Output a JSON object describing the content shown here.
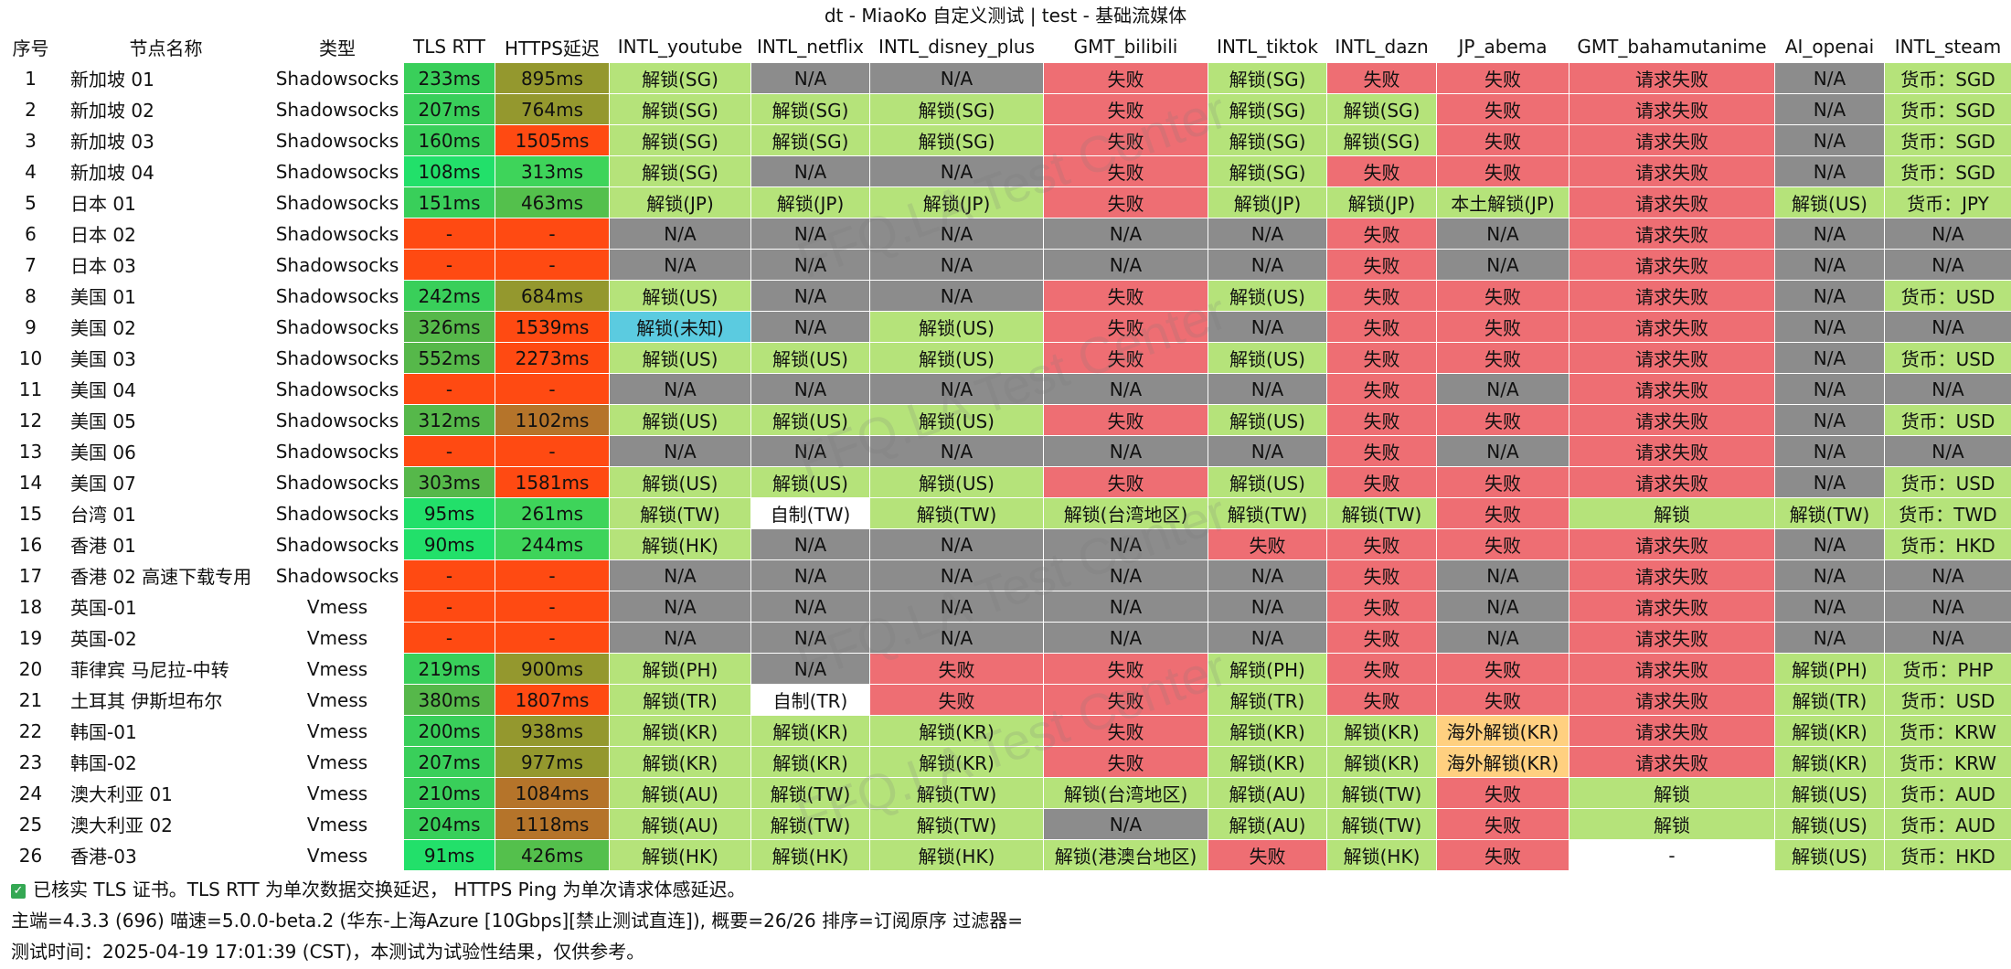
{
  "window_title": "dt - MiaoKo 自定义测试 | test - 基础流媒体",
  "watermark_text": "FFQ.LA Test Center",
  "columns": [
    "序号",
    "节点名称",
    "类型",
    "TLS RTT",
    "HTTPS延迟",
    "INTL_youtube",
    "INTL_netflix",
    "INTL_disney_plus",
    "GMT_bilibili",
    "INTL_tiktok",
    "INTL_dazn",
    "JP_abema",
    "GMT_bahamutanime",
    "AI_openai",
    "INTL_steam"
  ],
  "rows": [
    [
      "1",
      "新加坡 01",
      "Shadowsocks",
      "233ms",
      "895ms",
      "解锁(SG)",
      "N/A",
      "N/A",
      "失败",
      "解锁(SG)",
      "失败",
      "失败",
      "请求失败",
      "N/A",
      "货币：SGD"
    ],
    [
      "2",
      "新加坡 02",
      "Shadowsocks",
      "207ms",
      "764ms",
      "解锁(SG)",
      "解锁(SG)",
      "解锁(SG)",
      "失败",
      "解锁(SG)",
      "解锁(SG)",
      "失败",
      "请求失败",
      "N/A",
      "货币：SGD"
    ],
    [
      "3",
      "新加坡 03",
      "Shadowsocks",
      "160ms",
      "1505ms",
      "解锁(SG)",
      "解锁(SG)",
      "解锁(SG)",
      "失败",
      "解锁(SG)",
      "解锁(SG)",
      "失败",
      "请求失败",
      "N/A",
      "货币：SGD"
    ],
    [
      "4",
      "新加坡 04",
      "Shadowsocks",
      "108ms",
      "313ms",
      "解锁(SG)",
      "N/A",
      "N/A",
      "失败",
      "解锁(SG)",
      "失败",
      "失败",
      "请求失败",
      "N/A",
      "货币：SGD"
    ],
    [
      "5",
      "日本 01",
      "Shadowsocks",
      "151ms",
      "463ms",
      "解锁(JP)",
      "解锁(JP)",
      "解锁(JP)",
      "失败",
      "解锁(JP)",
      "解锁(JP)",
      "本土解锁(JP)",
      "请求失败",
      "解锁(US)",
      "货币：JPY"
    ],
    [
      "6",
      "日本 02",
      "Shadowsocks",
      "-",
      "-",
      "N/A",
      "N/A",
      "N/A",
      "N/A",
      "N/A",
      "失败",
      "N/A",
      "请求失败",
      "N/A",
      "N/A"
    ],
    [
      "7",
      "日本 03",
      "Shadowsocks",
      "-",
      "-",
      "N/A",
      "N/A",
      "N/A",
      "N/A",
      "N/A",
      "失败",
      "N/A",
      "请求失败",
      "N/A",
      "N/A"
    ],
    [
      "8",
      "美国 01",
      "Shadowsocks",
      "242ms",
      "684ms",
      "解锁(US)",
      "N/A",
      "N/A",
      "失败",
      "解锁(US)",
      "失败",
      "失败",
      "请求失败",
      "N/A",
      "货币：USD"
    ],
    [
      "9",
      "美国 02",
      "Shadowsocks",
      "326ms",
      "1539ms",
      "解锁(未知)",
      "N/A",
      "解锁(US)",
      "失败",
      "N/A",
      "失败",
      "失败",
      "请求失败",
      "N/A",
      "N/A"
    ],
    [
      "10",
      "美国 03",
      "Shadowsocks",
      "552ms",
      "2273ms",
      "解锁(US)",
      "解锁(US)",
      "解锁(US)",
      "失败",
      "解锁(US)",
      "失败",
      "失败",
      "请求失败",
      "N/A",
      "货币：USD"
    ],
    [
      "11",
      "美国 04",
      "Shadowsocks",
      "-",
      "-",
      "N/A",
      "N/A",
      "N/A",
      "N/A",
      "N/A",
      "失败",
      "N/A",
      "请求失败",
      "N/A",
      "N/A"
    ],
    [
      "12",
      "美国 05",
      "Shadowsocks",
      "312ms",
      "1102ms",
      "解锁(US)",
      "解锁(US)",
      "解锁(US)",
      "失败",
      "解锁(US)",
      "失败",
      "失败",
      "请求失败",
      "N/A",
      "货币：USD"
    ],
    [
      "13",
      "美国 06",
      "Shadowsocks",
      "-",
      "-",
      "N/A",
      "N/A",
      "N/A",
      "N/A",
      "N/A",
      "失败",
      "N/A",
      "请求失败",
      "N/A",
      "N/A"
    ],
    [
      "14",
      "美国 07",
      "Shadowsocks",
      "303ms",
      "1581ms",
      "解锁(US)",
      "解锁(US)",
      "解锁(US)",
      "失败",
      "解锁(US)",
      "失败",
      "失败",
      "请求失败",
      "N/A",
      "货币：USD"
    ],
    [
      "15",
      "台湾 01",
      "Shadowsocks",
      "95ms",
      "261ms",
      "解锁(TW)",
      "自制(TW)",
      "解锁(TW)",
      "解锁(台湾地区)",
      "解锁(TW)",
      "解锁(TW)",
      "失败",
      "解锁",
      "解锁(TW)",
      "货币：TWD"
    ],
    [
      "16",
      "香港 01",
      "Shadowsocks",
      "90ms",
      "244ms",
      "解锁(HK)",
      "N/A",
      "N/A",
      "N/A",
      "失败",
      "失败",
      "失败",
      "请求失败",
      "N/A",
      "货币：HKD"
    ],
    [
      "17",
      "香港 02 高速下载专用",
      "Shadowsocks",
      "-",
      "-",
      "N/A",
      "N/A",
      "N/A",
      "N/A",
      "N/A",
      "失败",
      "N/A",
      "请求失败",
      "N/A",
      "N/A"
    ],
    [
      "18",
      "英国-01",
      "Vmess",
      "-",
      "-",
      "N/A",
      "N/A",
      "N/A",
      "N/A",
      "N/A",
      "失败",
      "N/A",
      "请求失败",
      "N/A",
      "N/A"
    ],
    [
      "19",
      "英国-02",
      "Vmess",
      "-",
      "-",
      "N/A",
      "N/A",
      "N/A",
      "N/A",
      "N/A",
      "失败",
      "N/A",
      "请求失败",
      "N/A",
      "N/A"
    ],
    [
      "20",
      "菲律宾 马尼拉-中转",
      "Vmess",
      "219ms",
      "900ms",
      "解锁(PH)",
      "N/A",
      "失败",
      "失败",
      "解锁(PH)",
      "失败",
      "失败",
      "请求失败",
      "解锁(PH)",
      "货币：PHP"
    ],
    [
      "21",
      "土耳其 伊斯坦布尔",
      "Vmess",
      "380ms",
      "1807ms",
      "解锁(TR)",
      "自制(TR)",
      "失败",
      "失败",
      "解锁(TR)",
      "失败",
      "失败",
      "请求失败",
      "解锁(TR)",
      "货币：USD"
    ],
    [
      "22",
      "韩国-01",
      "Vmess",
      "200ms",
      "938ms",
      "解锁(KR)",
      "解锁(KR)",
      "解锁(KR)",
      "失败",
      "解锁(KR)",
      "解锁(KR)",
      "海外解锁(KR)",
      "请求失败",
      "解锁(KR)",
      "货币：KRW"
    ],
    [
      "23",
      "韩国-02",
      "Vmess",
      "207ms",
      "977ms",
      "解锁(KR)",
      "解锁(KR)",
      "解锁(KR)",
      "失败",
      "解锁(KR)",
      "解锁(KR)",
      "海外解锁(KR)",
      "请求失败",
      "解锁(KR)",
      "货币：KRW"
    ],
    [
      "24",
      "澳大利亚 01",
      "Vmess",
      "210ms",
      "1084ms",
      "解锁(AU)",
      "解锁(TW)",
      "解锁(TW)",
      "解锁(台湾地区)",
      "解锁(AU)",
      "解锁(TW)",
      "失败",
      "解锁",
      "解锁(US)",
      "货币：AUD"
    ],
    [
      "25",
      "澳大利亚 02",
      "Vmess",
      "204ms",
      "1118ms",
      "解锁(AU)",
      "解锁(TW)",
      "解锁(TW)",
      "N/A",
      "解锁(AU)",
      "解锁(TW)",
      "失败",
      "解锁",
      "解锁(US)",
      "货币：AUD"
    ],
    [
      "26",
      "香港-03",
      "Vmess",
      "91ms",
      "426ms",
      "解锁(HK)",
      "解锁(HK)",
      "解锁(HK)",
      "解锁(港澳台地区)",
      "失败",
      "解锁(HK)",
      "失败",
      "-",
      "解锁(US)",
      "货币：HKD"
    ]
  ],
  "footer": {
    "line1": "已核实 TLS 证书。TLS RTT 为单次数据交换延迟， HTTPS Ping 为单次请求体感延迟。",
    "line2": "主端=4.3.3 (696) 喵速=5.0.0-beta.2 (华东-上海Azure [10Gbps][禁止测试直连]), 概要=26/26 排序=订阅原序 过滤器=",
    "line3": "测试时间：2025-04-19 17:01:39 (CST)，本测试为试验性结果，仅供参考。"
  },
  "colors": {
    "unlock": "#b5e37a",
    "na": "#8c8c8c",
    "fail": "#ee6e73",
    "cyan": "#5bcbe0",
    "orange_light": "#ffd080",
    "white": "#ffffff",
    "none": "#ff4a12"
  }
}
